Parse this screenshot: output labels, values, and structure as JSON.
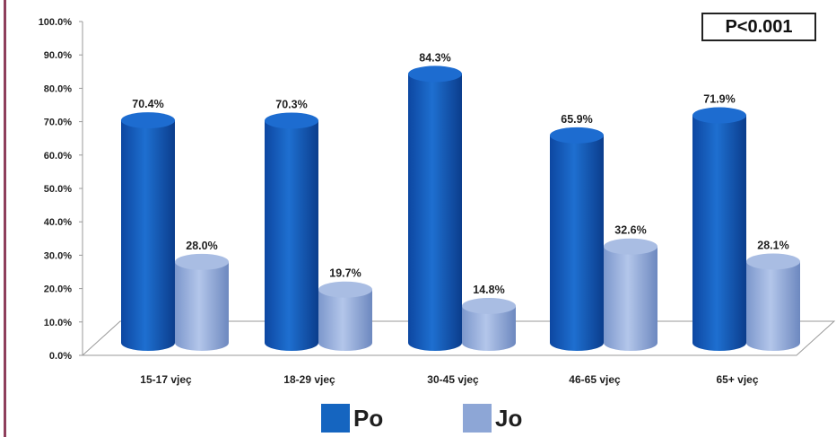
{
  "annotation": "P<0.001",
  "colors": {
    "po": "#1565c0",
    "jo": "#8da6d6"
  },
  "chart_data": {
    "type": "bar",
    "categories": [
      "15-17 vjeç",
      "18-29 vjeç",
      "30-45 vjeç",
      "46-65 vjeç",
      "65+ vjeç"
    ],
    "series": [
      {
        "name": "Po",
        "values": [
          70.4,
          70.3,
          84.3,
          65.9,
          71.9
        ],
        "labels": [
          "70.4%",
          "70.3%",
          "84.3%",
          "65.9%",
          "71.9%"
        ]
      },
      {
        "name": "Jo",
        "values": [
          28.0,
          19.7,
          14.8,
          32.6,
          28.1
        ],
        "labels": [
          "28.0%",
          "19.7%",
          "14.8%",
          "32.6%",
          "28.1%"
        ]
      }
    ],
    "yticks": [
      "0.0%",
      "10.0%",
      "20.0%",
      "30.0%",
      "40.0%",
      "50.0%",
      "60.0%",
      "70.0%",
      "80.0%",
      "90.0%",
      "100.0%"
    ],
    "ylim": [
      0,
      100
    ],
    "legend_position": "bottom"
  }
}
